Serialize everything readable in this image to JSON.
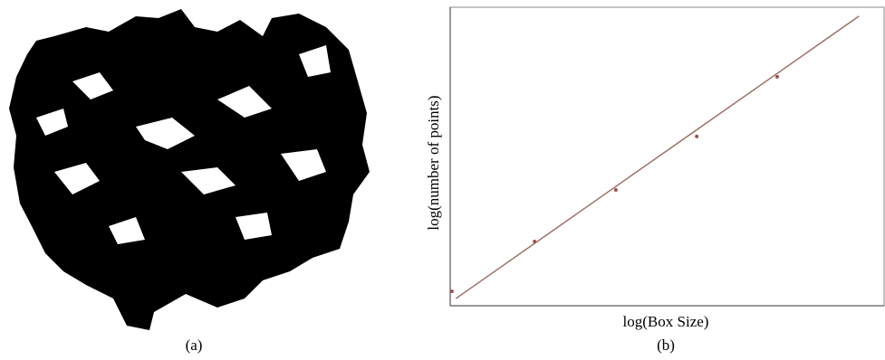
{
  "figure_a": {
    "caption": "(a)"
  },
  "chart_data": {
    "type": "scatter",
    "caption": "(b)",
    "xlabel": "log(Box Size)",
    "ylabel": "log(number of points)",
    "x": [
      0.4,
      19.4,
      38.1,
      56.7,
      75.2
    ],
    "values": [
      4.8,
      21.5,
      38.8,
      56.7,
      76.7
    ],
    "color": "#a0524a",
    "fit": {
      "x": [
        1.3,
        94
      ],
      "values": [
        2.4,
        97
      ],
      "color": "#a07068"
    },
    "xlim": [
      0,
      100
    ],
    "ylim": [
      0,
      100
    ]
  }
}
